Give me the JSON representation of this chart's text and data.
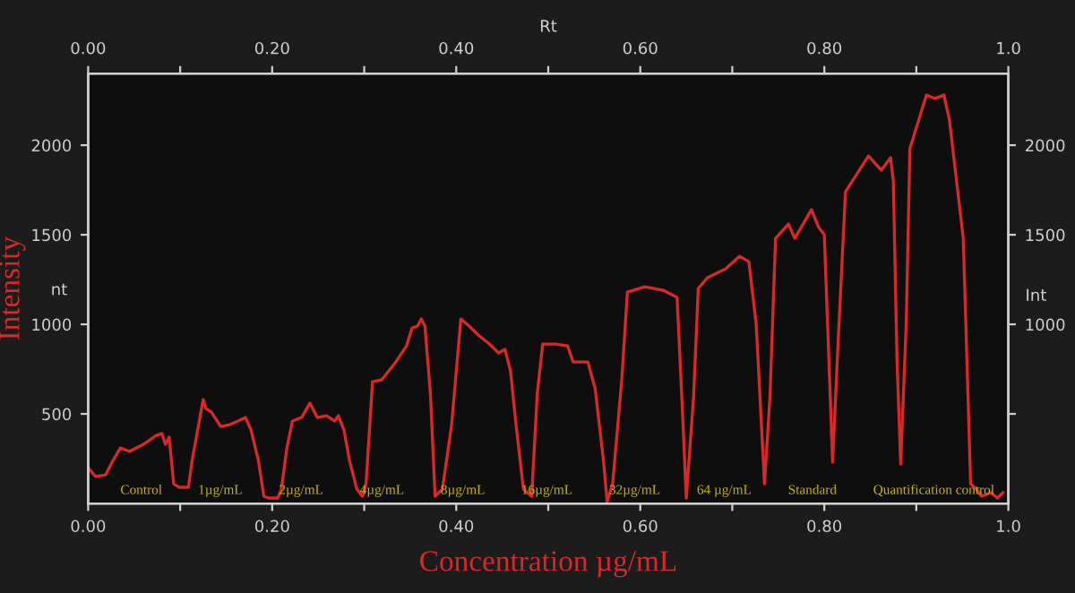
{
  "chart_data": {
    "type": "line",
    "xlabel": "Concentration µg/mL",
    "ylabel": "Intensity",
    "y2label": "Int",
    "x2label": "Rt",
    "x": [
      0,
      0.008,
      0.019,
      0.027,
      0.035,
      0.045,
      0.06,
      0.074,
      0.08,
      0.084,
      0.088,
      0.093,
      0.099,
      0.109,
      0.113,
      0.125,
      0.128,
      0.134,
      0.144,
      0.154,
      0.163,
      0.171,
      0.177,
      0.185,
      0.191,
      0.196,
      0.206,
      0.21,
      0.216,
      0.222,
      0.232,
      0.241,
      0.249,
      0.259,
      0.268,
      0.272,
      0.278,
      0.284,
      0.292,
      0.298,
      0.302,
      0.309,
      0.319,
      0.333,
      0.346,
      0.352,
      0.358,
      0.362,
      0.366,
      0.372,
      0.377,
      0.385,
      0.395,
      0.405,
      0.414,
      0.424,
      0.436,
      0.446,
      0.453,
      0.459,
      0.465,
      0.473,
      0.482,
      0.488,
      0.494,
      0.508,
      0.521,
      0.527,
      0.543,
      0.551,
      0.56,
      0.564,
      0.57,
      0.58,
      0.586,
      0.605,
      0.625,
      0.64,
      0.646,
      0.65,
      0.658,
      0.663,
      0.673,
      0.693,
      0.708,
      0.718,
      0.726,
      0.735,
      0.741,
      0.747,
      0.761,
      0.768,
      0.786,
      0.794,
      0.8,
      0.805,
      0.809,
      0.815,
      0.823,
      0.848,
      0.862,
      0.872,
      0.875,
      0.879,
      0.883,
      0.889,
      0.893,
      0.911,
      0.92,
      0.93,
      0.936,
      0.946,
      0.951,
      0.959,
      0.965,
      0.971,
      0.981,
      0.988,
      0.994
    ],
    "values": [
      200,
      150,
      160,
      240,
      310,
      290,
      330,
      380,
      390,
      330,
      370,
      110,
      90,
      90,
      240,
      580,
      530,
      510,
      430,
      440,
      460,
      480,
      410,
      240,
      40,
      30,
      30,
      80,
      310,
      460,
      480,
      560,
      480,
      490,
      460,
      490,
      410,
      240,
      80,
      40,
      110,
      680,
      690,
      780,
      880,
      980,
      990,
      1030,
      990,
      610,
      40,
      80,
      440,
      1030,
      990,
      940,
      890,
      840,
      860,
      740,
      440,
      80,
      40,
      610,
      890,
      890,
      880,
      790,
      790,
      640,
      240,
      10,
      110,
      700,
      1180,
      1210,
      1190,
      1150,
      500,
      30,
      600,
      1200,
      1260,
      1310,
      1380,
      1350,
      1000,
      110,
      600,
      1480,
      1560,
      1480,
      1640,
      1540,
      1500,
      800,
      230,
      900,
      1740,
      1940,
      1860,
      1930,
      1800,
      800,
      220,
      1000,
      1980,
      2280,
      2260,
      2280,
      2140,
      1700,
      1480,
      110,
      80,
      40,
      60,
      30,
      60
    ],
    "color": "#d42a2a",
    "xlim": [
      0,
      1.0
    ],
    "xticks": [
      {
        "value": 0,
        "label": "0.00"
      },
      {
        "value": 0.1,
        "label": null
      },
      {
        "value": 0.2,
        "label": "0.20"
      },
      {
        "value": 0.3,
        "label": null
      },
      {
        "value": 0.4,
        "label": "0.40"
      },
      {
        "value": 0.5,
        "label": null
      },
      {
        "value": 0.6,
        "label": "0.60"
      },
      {
        "value": 0.7,
        "label": null
      },
      {
        "value": 0.8,
        "label": "0.80"
      },
      {
        "value": 0.9,
        "label": null
      },
      {
        "value": 1.0,
        "label": "1.0"
      }
    ],
    "x2lim": [
      0,
      1.0
    ],
    "x2ticks": [
      {
        "value": 0,
        "label": "0.00"
      },
      {
        "value": 0.1,
        "label": null
      },
      {
        "value": 0.2,
        "label": "0.20"
      },
      {
        "value": 0.3,
        "label": null
      },
      {
        "value": 0.4,
        "label": "0.40"
      },
      {
        "value": 0.5,
        "label": null
      },
      {
        "value": 0.6,
        "label": "0.60"
      },
      {
        "value": 0.7,
        "label": null
      },
      {
        "value": 0.8,
        "label": "0.80"
      },
      {
        "value": 0.9,
        "label": null
      },
      {
        "value": 1.0,
        "label": "1.0"
      }
    ],
    "ylim": [
      0,
      2400
    ],
    "yticks": [
      500,
      1000,
      1500,
      2000
    ],
    "y2lim": [
      0,
      2400
    ],
    "y2ticks": [
      {
        "value": 500,
        "label": null
      },
      1000,
      1500,
      2000
    ],
    "grid": false,
    "annotations": [
      "nt",
      "Control",
      "1µg/mL",
      "2µg/mL",
      "4µg/mL",
      "8µg/mL",
      "16µg/mL",
      "32µg/mL",
      "64 µg/mL",
      "Standard",
      "Quantification control"
    ]
  }
}
